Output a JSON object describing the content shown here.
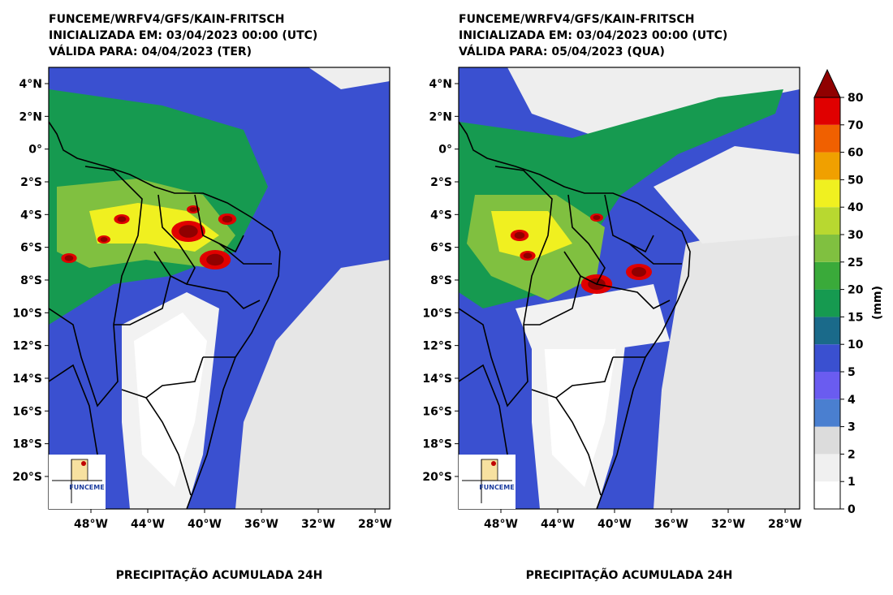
{
  "panels": [
    {
      "title_lines": [
        "FUNCEME/WRFV4/GFS/KAIN-FRITSCH",
        "INICIALIZADA EM: 03/04/2023 00:00 (UTC)",
        "VÁLIDA PARA: 04/04/2023 (TER)"
      ],
      "footer": "PRECIPITAÇÃO ACUMULADA 24H"
    },
    {
      "title_lines": [
        "FUNCEME/WRFV4/GFS/KAIN-FRITSCH",
        "INICIALIZADA EM: 03/04/2023 00:00 (UTC)",
        "VÁLIDA PARA: 05/04/2023 (QUA)"
      ],
      "footer": "PRECIPITAÇÃO ACUMULADA 24H"
    }
  ],
  "lat_labels": [
    "4°N",
    "2°N",
    "0°",
    "2°S",
    "4°S",
    "6°S",
    "8°S",
    "10°S",
    "12°S",
    "14°S",
    "16°S",
    "18°S",
    "20°S"
  ],
  "lon_labels": [
    "48°W",
    "44°W",
    "40°W",
    "36°W",
    "32°W",
    "28°W"
  ],
  "logo": "FUNCEME",
  "colorbar": {
    "label": "(mm)",
    "ticks": [
      0,
      1,
      2,
      3,
      4,
      5,
      10,
      15,
      20,
      25,
      30,
      40,
      50,
      60,
      70,
      80
    ],
    "colors": [
      "#ffffff",
      "#f0f0f0",
      "#dcdcdc",
      "#4a7fd0",
      "#6a5cf0",
      "#3a50d0",
      "#1a6a8a",
      "#169a50",
      "#3aaa3a",
      "#80c040",
      "#b8d830",
      "#f0f020",
      "#f0a000",
      "#f06000",
      "#e00000"
    ],
    "extend_color": "#900000"
  }
}
